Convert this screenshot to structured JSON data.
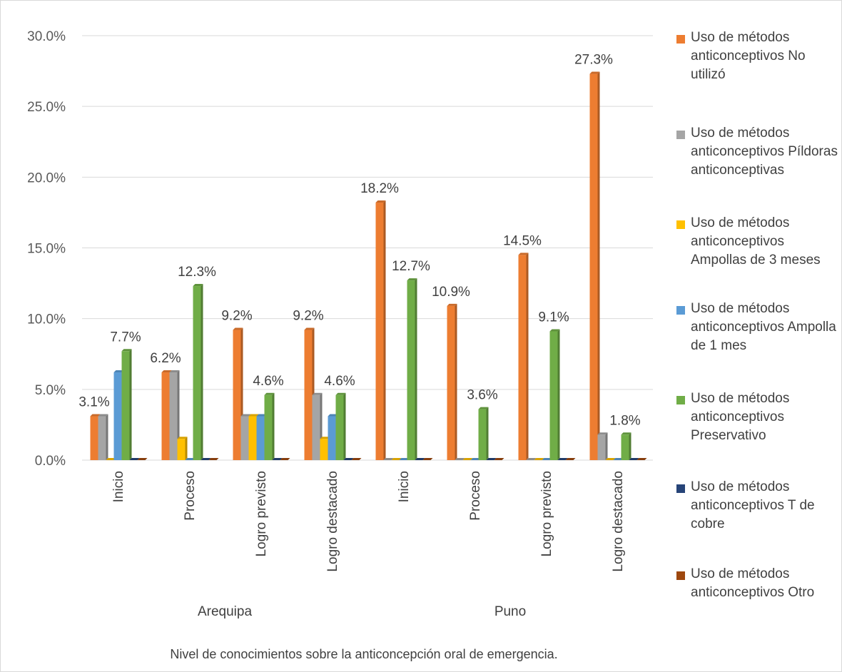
{
  "chart_data": {
    "type": "bar",
    "xlabel": "Nivel de conocimientos sobre la anticoncepción oral de emergencia.",
    "ylabel": "",
    "ylim": [
      0,
      30
    ],
    "y_ticks": [
      "0.0%",
      "5.0%",
      "10.0%",
      "15.0%",
      "20.0%",
      "25.0%",
      "30.0%"
    ],
    "grid": true,
    "legend_position": "right",
    "groups": [
      "Arequipa",
      "Puno"
    ],
    "categories": [
      "Inicio",
      "Proceso",
      "Logro previsto",
      "Logro destacado",
      "Inicio",
      "Proceso",
      "Logro previsto",
      "Logro destacado"
    ],
    "category_group": [
      0,
      0,
      0,
      0,
      1,
      1,
      1,
      1
    ],
    "series": [
      {
        "name": "Uso de métodos anticonceptivos No utilizó",
        "color": "#ED7D31",
        "values": [
          3.1,
          6.2,
          9.2,
          9.2,
          18.2,
          10.9,
          14.5,
          27.3
        ],
        "labels": [
          "3.1%",
          "6.2%",
          "9.2%",
          "9.2%",
          "18.2%",
          "10.9%",
          "14.5%",
          "27.3%"
        ]
      },
      {
        "name": "Uso de métodos anticonceptivos Píldoras anticonceptivas",
        "color": "#A5A5A5",
        "values": [
          3.1,
          6.2,
          3.1,
          4.6,
          0,
          0,
          0,
          1.8
        ],
        "labels": [
          "",
          "",
          "",
          "",
          "",
          "",
          "",
          ""
        ]
      },
      {
        "name": "Uso de métodos anticonceptivos Ampollas de 3 meses",
        "color": "#FFC000",
        "values": [
          0,
          1.5,
          3.1,
          1.5,
          0,
          0,
          0,
          0
        ],
        "labels": [
          "",
          "",
          "",
          "",
          "",
          "",
          "",
          ""
        ]
      },
      {
        "name": "Uso de métodos anticonceptivos Ampolla de 1 mes",
        "color": "#5B9BD5",
        "values": [
          6.2,
          0,
          3.1,
          3.1,
          0,
          0,
          0,
          0
        ],
        "labels": [
          "",
          "",
          "",
          "",
          "",
          "",
          "",
          ""
        ]
      },
      {
        "name": "Uso de métodos anticonceptivos Preservativo",
        "color": "#70AD47",
        "values": [
          7.7,
          12.3,
          4.6,
          4.6,
          12.7,
          3.6,
          9.1,
          1.8
        ],
        "labels": [
          "7.7%",
          "12.3%",
          "4.6%",
          "4.6%",
          "12.7%",
          "3.6%",
          "9.1%",
          "1.8%"
        ]
      },
      {
        "name": "Uso de métodos anticonceptivos T de cobre",
        "color": "#264478",
        "values": [
          0,
          0,
          0,
          0,
          0,
          0,
          0,
          0
        ],
        "labels": [
          "",
          "",
          "",
          "",
          "",
          "",
          "",
          ""
        ]
      },
      {
        "name": "Uso de métodos anticonceptivos Otro",
        "color": "#9E480E",
        "values": [
          0,
          0,
          0,
          0,
          0,
          0,
          0,
          0
        ],
        "labels": [
          "",
          "",
          "",
          "",
          "",
          "",
          "",
          ""
        ]
      }
    ]
  }
}
